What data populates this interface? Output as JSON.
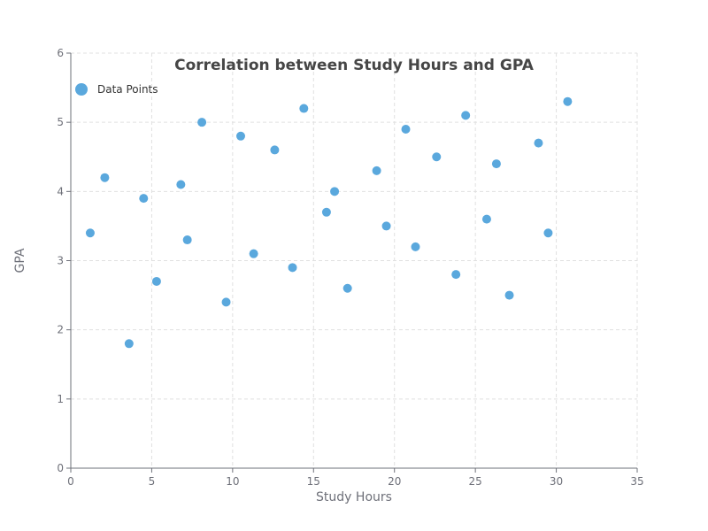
{
  "colors": {
    "point": "#5aa8dd",
    "axis": "#6e7079",
    "grid": "#e0e0e0",
    "title": "#464646"
  },
  "chart_data": {
    "type": "scatter",
    "title": "Correlation between Study Hours and GPA",
    "xlabel": "Study Hours",
    "ylabel": "GPA",
    "xlim": [
      0,
      35
    ],
    "ylim": [
      0,
      6
    ],
    "xticks": [
      0,
      5,
      10,
      15,
      20,
      25,
      30,
      35
    ],
    "yticks": [
      0,
      1,
      2,
      3,
      4,
      5,
      6
    ],
    "grid": true,
    "legend_position": "top-left",
    "series": [
      {
        "name": "Data Points",
        "color": "#5aa8dd",
        "points": [
          {
            "x": 1.2,
            "y": 3.4
          },
          {
            "x": 2.1,
            "y": 4.2
          },
          {
            "x": 3.6,
            "y": 1.8
          },
          {
            "x": 4.5,
            "y": 3.9
          },
          {
            "x": 5.3,
            "y": 2.7
          },
          {
            "x": 6.8,
            "y": 4.1
          },
          {
            "x": 7.2,
            "y": 3.3
          },
          {
            "x": 8.1,
            "y": 5.0
          },
          {
            "x": 9.6,
            "y": 2.4
          },
          {
            "x": 10.5,
            "y": 4.8
          },
          {
            "x": 11.3,
            "y": 3.1
          },
          {
            "x": 12.6,
            "y": 4.6
          },
          {
            "x": 13.7,
            "y": 2.9
          },
          {
            "x": 14.4,
            "y": 5.2
          },
          {
            "x": 15.8,
            "y": 3.7
          },
          {
            "x": 16.3,
            "y": 4.0
          },
          {
            "x": 17.1,
            "y": 2.6
          },
          {
            "x": 18.9,
            "y": 4.3
          },
          {
            "x": 19.5,
            "y": 3.5
          },
          {
            "x": 20.7,
            "y": 4.9
          },
          {
            "x": 21.3,
            "y": 3.2
          },
          {
            "x": 22.6,
            "y": 4.5
          },
          {
            "x": 23.8,
            "y": 2.8
          },
          {
            "x": 24.4,
            "y": 5.1
          },
          {
            "x": 25.7,
            "y": 3.6
          },
          {
            "x": 26.3,
            "y": 4.4
          },
          {
            "x": 27.1,
            "y": 2.5
          },
          {
            "x": 28.9,
            "y": 4.7
          },
          {
            "x": 29.5,
            "y": 3.4
          },
          {
            "x": 30.7,
            "y": 5.3
          }
        ]
      }
    ]
  }
}
